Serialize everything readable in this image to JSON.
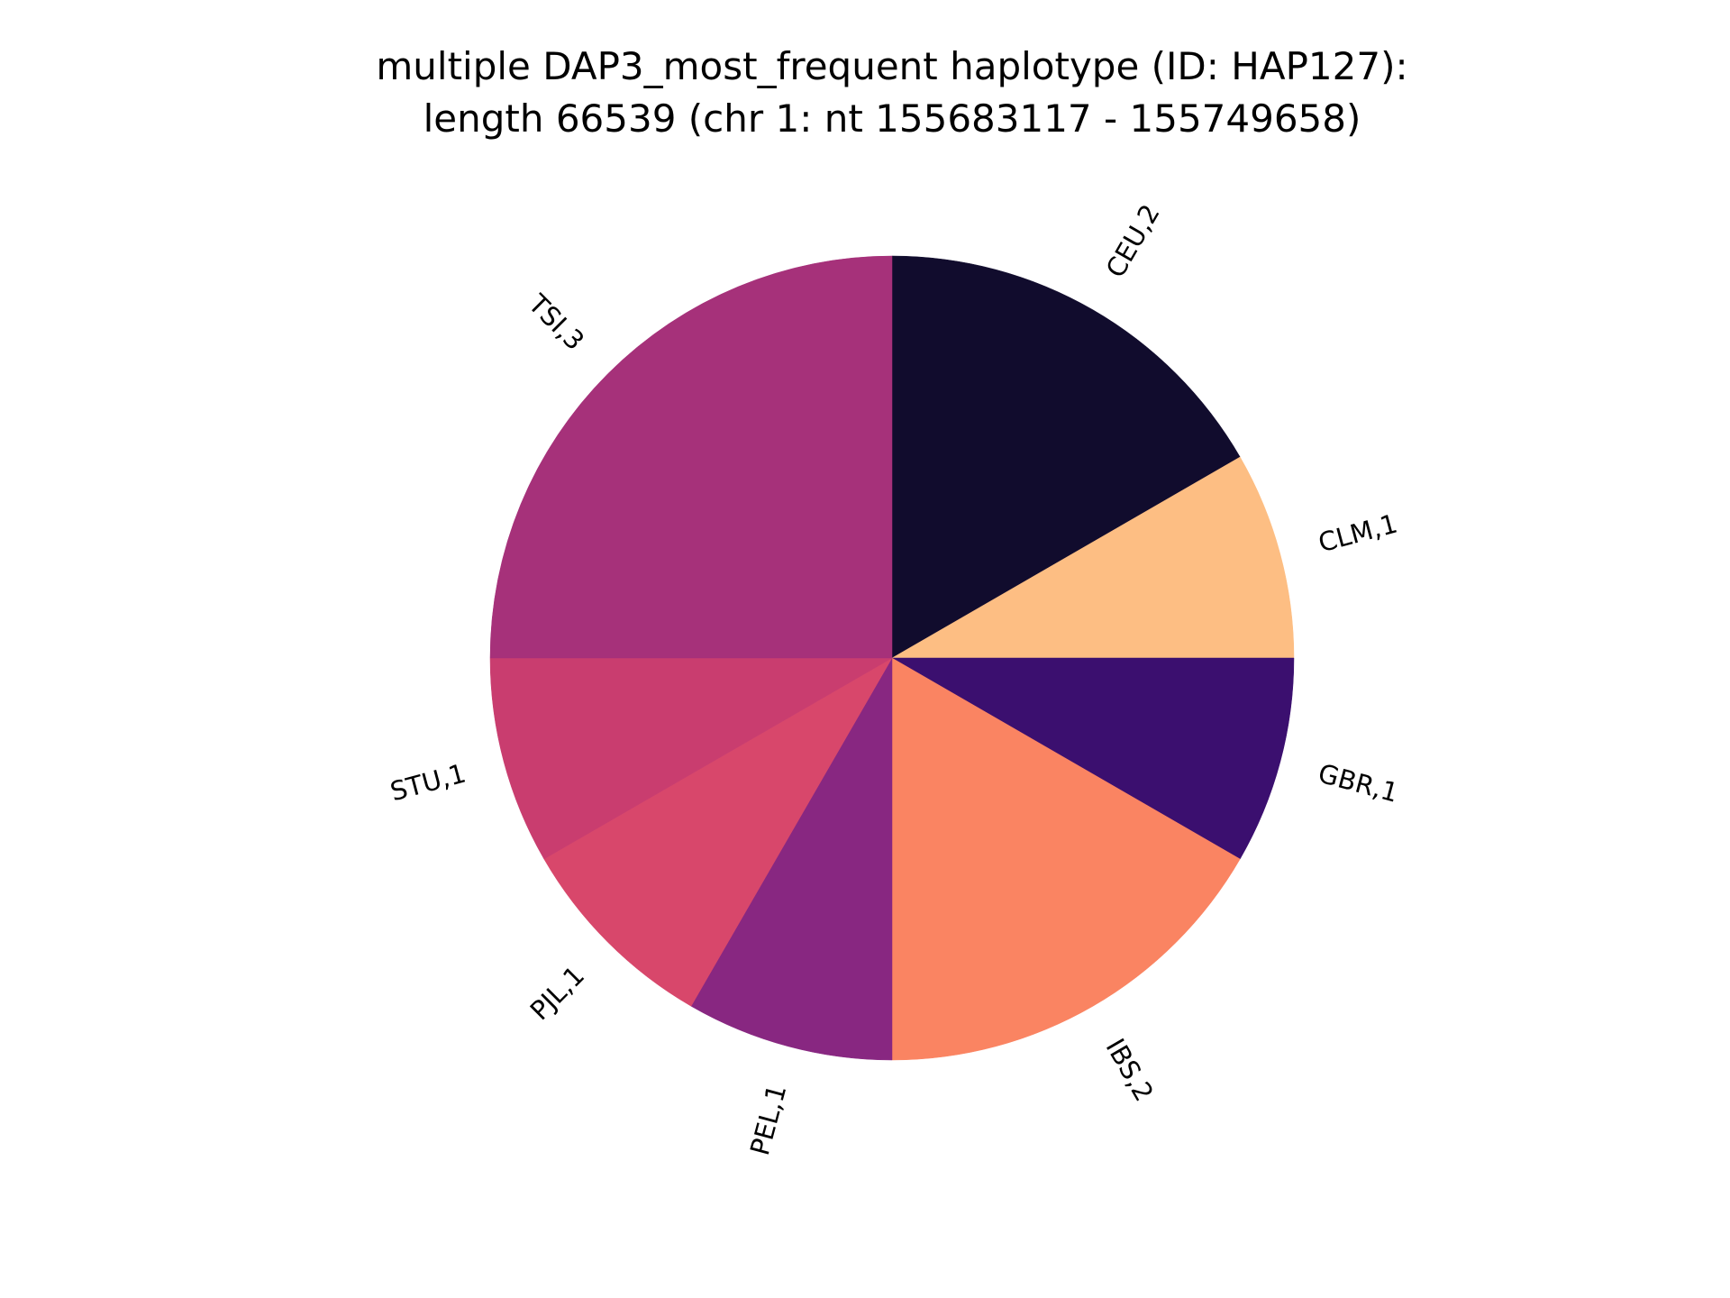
{
  "chart_data": {
    "type": "pie",
    "title": "multiple DAP3_most_frequent haplotype (ID: HAP127):\nlength 66539 (chr 1: nt 155683117 - 155749658)",
    "title_lines": [
      "multiple DAP3_most_frequent haplotype (ID: HAP127):",
      "length 66539 (chr 1: nt 155683117 - 155749658)"
    ],
    "categories": [
      "CEU",
      "CLM",
      "GBR",
      "IBS",
      "PEL",
      "PJL",
      "STU",
      "TSI"
    ],
    "values": [
      2,
      1,
      1,
      2,
      1,
      1,
      1,
      3
    ],
    "labels": [
      "CEU,2",
      "CLM,1",
      "GBR,1",
      "IBS,2",
      "PEL,1",
      "PJL,1",
      "STU,1",
      "TSI,3"
    ],
    "colors": [
      "#110c2d",
      "#fdbe83",
      "#3b0f6f",
      "#fa8462",
      "#882781",
      "#d8476b",
      "#c93d6f",
      "#a6317a"
    ],
    "start": "12 o'clock",
    "direction": "clockwise",
    "legend": "none"
  }
}
